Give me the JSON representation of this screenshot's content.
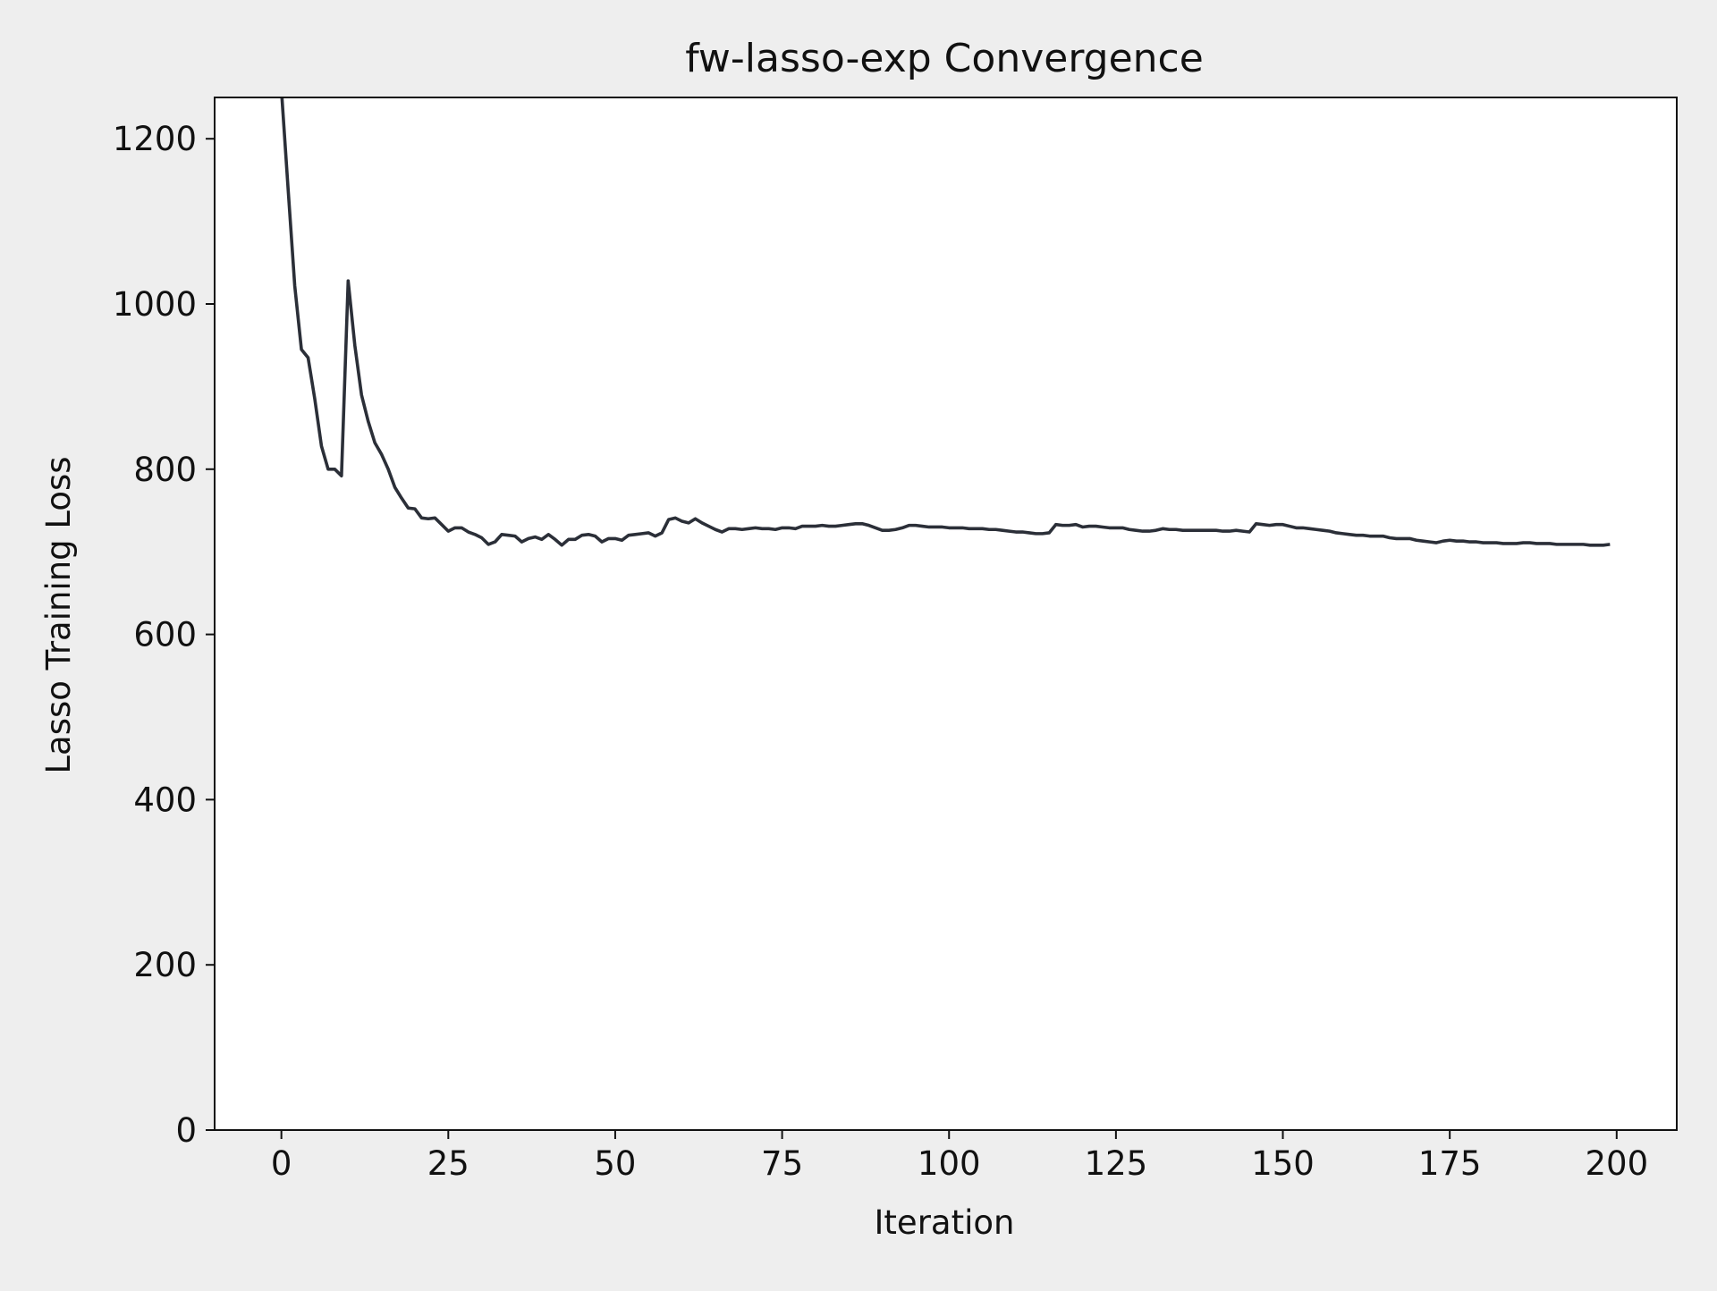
{
  "chart_data": {
    "type": "line",
    "title": "fw-lasso-exp Convergence",
    "xlabel": "Iteration",
    "ylabel": "Lasso Training Loss",
    "xlim": [
      -10,
      209
    ],
    "ylim": [
      0,
      1250
    ],
    "xticks": [
      0,
      25,
      50,
      75,
      100,
      125,
      150,
      175,
      200
    ],
    "yticks": [
      0,
      200,
      400,
      600,
      800,
      1000,
      1200
    ],
    "xtick_labels": [
      "0",
      "25",
      "50",
      "75",
      "100",
      "125",
      "150",
      "175",
      "200"
    ],
    "ytick_labels": [
      "0",
      "200",
      "400",
      "600",
      "800",
      "1000",
      "1200"
    ],
    "grid": false,
    "legend": false,
    "colors": {
      "line": "#2b2f38",
      "axes_bg": "#ffffff",
      "figure_bg": "#eeeeee"
    },
    "series": [
      {
        "x": [
          0,
          1,
          2,
          3,
          4,
          5,
          6,
          7,
          8,
          9,
          10,
          11,
          12,
          13,
          14,
          15,
          16,
          17,
          18,
          19,
          20,
          21,
          22,
          23,
          24,
          25,
          26,
          27,
          28,
          29,
          30,
          31,
          32,
          33,
          34,
          35,
          36,
          37,
          38,
          39,
          40,
          41,
          42,
          43,
          44,
          45,
          46,
          47,
          48,
          49,
          50,
          51,
          52,
          53,
          54,
          55,
          56,
          57,
          58,
          59,
          60,
          61,
          62,
          63,
          64,
          65,
          66,
          67,
          68,
          69,
          70,
          71,
          72,
          73,
          74,
          75,
          76,
          77,
          78,
          79,
          80,
          81,
          82,
          83,
          84,
          85,
          86,
          87,
          88,
          89,
          90,
          91,
          92,
          93,
          94,
          95,
          96,
          97,
          98,
          99,
          100,
          101,
          102,
          103,
          104,
          105,
          106,
          107,
          108,
          109,
          110,
          111,
          112,
          113,
          114,
          115,
          116,
          117,
          118,
          119,
          120,
          121,
          122,
          123,
          124,
          125,
          126,
          127,
          128,
          129,
          130,
          131,
          132,
          133,
          134,
          135,
          136,
          137,
          138,
          139,
          140,
          141,
          142,
          143,
          144,
          145,
          146,
          147,
          148,
          149,
          150,
          151,
          152,
          153,
          154,
          155,
          156,
          157,
          158,
          159,
          160,
          161,
          162,
          163,
          164,
          165,
          166,
          167,
          168,
          169,
          170,
          171,
          172,
          173,
          174,
          175,
          176,
          177,
          178,
          179,
          180,
          181,
          182,
          183,
          184,
          185,
          186,
          187,
          188,
          189,
          190,
          191,
          192,
          193,
          194,
          195,
          196,
          197,
          198,
          199
        ],
        "values": [
          1260,
          1140,
          1022,
          945,
          935,
          885,
          828,
          800,
          800,
          792,
          1028,
          950,
          890,
          858,
          832,
          818,
          800,
          778,
          765,
          753,
          752,
          741,
          740,
          741,
          733,
          725,
          729,
          729,
          724,
          721,
          717,
          709,
          712,
          721,
          720,
          719,
          712,
          716,
          718,
          715,
          721,
          715,
          708,
          715,
          715,
          720,
          721,
          719,
          712,
          716,
          716,
          714,
          720,
          721,
          722,
          723,
          719,
          723,
          739,
          741,
          737,
          735,
          740,
          735,
          731,
          727,
          724,
          728,
          728,
          727,
          728,
          729,
          728,
          728,
          727,
          729,
          729,
          728,
          731,
          731,
          731,
          732,
          731,
          731,
          732,
          733,
          734,
          734,
          732,
          729,
          726,
          726,
          727,
          729,
          732,
          732,
          731,
          730,
          730,
          730,
          729,
          729,
          729,
          728,
          728,
          728,
          727,
          727,
          726,
          725,
          724,
          724,
          723,
          722,
          722,
          723,
          733,
          732,
          732,
          733,
          730,
          731,
          731,
          730,
          729,
          729,
          729,
          727,
          726,
          725,
          725,
          726,
          728,
          727,
          727,
          726,
          726,
          726,
          726,
          726,
          726,
          725,
          725,
          726,
          725,
          724,
          734,
          733,
          732,
          733,
          733,
          731,
          729,
          729,
          728,
          727,
          726,
          725,
          723,
          722,
          721,
          720,
          720,
          719,
          719,
          719,
          717,
          716,
          716,
          716,
          714,
          713,
          712,
          711,
          713,
          714,
          713,
          713,
          712,
          712,
          711,
          711,
          711,
          710,
          710,
          710,
          711,
          711,
          710,
          710,
          710,
          709,
          709,
          709,
          709,
          709,
          708,
          708,
          708,
          709
        ]
      }
    ]
  }
}
